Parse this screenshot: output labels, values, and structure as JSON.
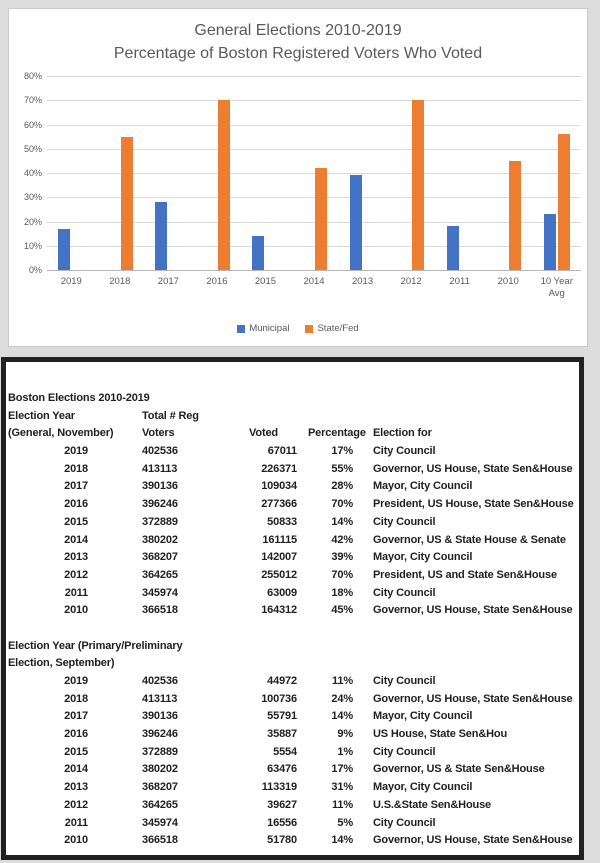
{
  "page": {
    "background": "#dcdcdc"
  },
  "chart": {
    "text_color": "#595959",
    "gridline_color": "#d9d9d9",
    "axis_color": "#b5b5b5",
    "panel_border_color": "#c9c9c9"
  },
  "chart_data": [
    {
      "type": "bar",
      "title": "General Elections 2010-2019 Percentage of Boston Registered Voters Who Voted",
      "title_lines": [
        "General Elections 2010-2019",
        "Percentage of Boston Registered Voters Who Voted"
      ],
      "categories": [
        "2019",
        "2018",
        "2017",
        "2016",
        "2015",
        "2014",
        "2013",
        "2012",
        "2011",
        "2010",
        "10 Year Avg"
      ],
      "series": [
        {
          "name": "Municipal",
          "color": "#4472C4",
          "values": [
            17,
            null,
            28,
            null,
            14,
            null,
            39,
            null,
            18,
            null,
            23
          ]
        },
        {
          "name": "State/Fed",
          "color": "#ED7D31",
          "values": [
            null,
            55,
            null,
            70,
            null,
            42,
            null,
            70,
            null,
            45,
            56
          ]
        }
      ],
      "xlabel": "",
      "ylabel": "",
      "ylim": [
        0,
        80
      ],
      "y_tick_step": 10,
      "y_tick_suffix": "%",
      "grid": true,
      "legend_position": "bottom"
    },
    {
      "type": "table",
      "title": "Boston Elections 2010-2019",
      "columns": [
        "Election Year (General, November)",
        "Total # Reg Voters",
        "Voted",
        "Percentage",
        "Election for"
      ],
      "header": {
        "col1": [
          "Election Year",
          "(General, November)"
        ],
        "col2": [
          "Total # Reg",
          "Voters"
        ],
        "col3": "Voted",
        "col4": "Percentage",
        "col5": "Election for"
      },
      "general_rows": [
        [
          "2019",
          "402536",
          "67011",
          "17%",
          "City Council"
        ],
        [
          "2018",
          "413113",
          "226371",
          "55%",
          "Governor, US House, State Sen&House"
        ],
        [
          "2017",
          "390136",
          "109034",
          "28%",
          "Mayor, City Council"
        ],
        [
          "2016",
          "396246",
          "277366",
          "70%",
          "President, US House, State Sen&House"
        ],
        [
          "2015",
          "372889",
          "50833",
          "14%",
          "City Council"
        ],
        [
          "2014",
          "380202",
          "161115",
          "42%",
          "Governor, US & State House & Senate"
        ],
        [
          "2013",
          "368207",
          "142007",
          "39%",
          "Mayor, City Council"
        ],
        [
          "2012",
          "364265",
          "255012",
          "70%",
          "President, US and State Sen&House"
        ],
        [
          "2011",
          "345974",
          "63009",
          "18%",
          "City Council"
        ],
        [
          "2010",
          "366518",
          "164312",
          "45%",
          "Governor, US House, State Sen&House"
        ]
      ],
      "primary_section_title": [
        "Election Year (Primary/Preliminary",
        "Election, September)"
      ],
      "primary_rows": [
        [
          "2019",
          "402536",
          "44972",
          "11%",
          "City Council"
        ],
        [
          "2018",
          "413113",
          "100736",
          "24%",
          "Governor, US House, State Sen&House"
        ],
        [
          "2017",
          "390136",
          "55791",
          "14%",
          "Mayor, City Council"
        ],
        [
          "2016",
          "396246",
          "35887",
          "9%",
          "US House, State Sen&Hou"
        ],
        [
          "2015",
          "372889",
          "5554",
          "1%",
          "City Council"
        ],
        [
          "2014",
          "380202",
          "63476",
          "17%",
          "Governor, US & State Sen&House"
        ],
        [
          "2013",
          "368207",
          "113319",
          "31%",
          "Mayor, City Council"
        ],
        [
          "2012",
          "364265",
          "39627",
          "11%",
          "U.S.&State Sen&House"
        ],
        [
          "2011",
          "345974",
          "16556",
          "5%",
          "City Council"
        ],
        [
          "2010",
          "366518",
          "51780",
          "14%",
          "Governor, US House, State Sen&House"
        ]
      ]
    }
  ]
}
